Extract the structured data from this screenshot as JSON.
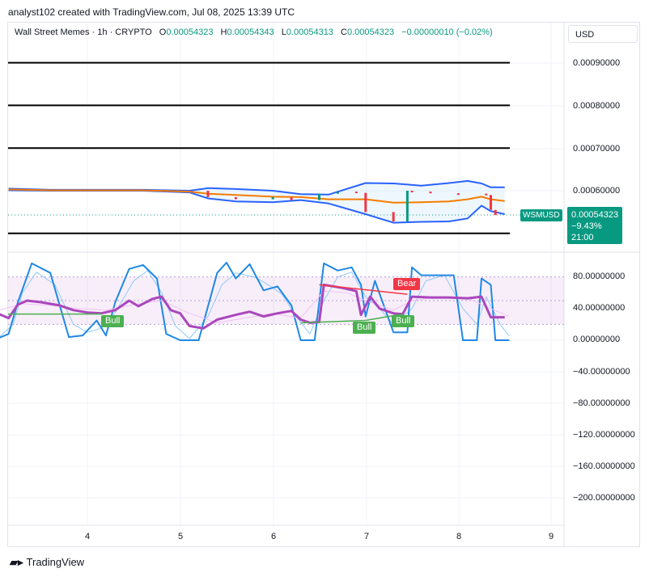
{
  "header": {
    "text": "analyst102 created with TradingView.com, Jul 08, 2025 13:39 UTC"
  },
  "legend": {
    "symbol": "Wall Street Memes · 1h · CRYPTO",
    "o_label": "O",
    "o": "0.00054323",
    "h_label": "H",
    "h": "0.00054343",
    "l_label": "L",
    "l": "0.00054313",
    "c_label": "C",
    "c": "0.00054323",
    "change": "−0.00000010 (−0.02%)"
  },
  "currency_button": "USD",
  "price_axis": [
    "0.00090000",
    "0.00080000",
    "0.00070000",
    "0.00060000"
  ],
  "osc_axis": [
    "80.00000000",
    "40.00000000",
    "0.00000000",
    "−40.00000000",
    "−80.00000000",
    "−120.00000000",
    "−160.00000000",
    "−200.00000000"
  ],
  "time_axis": [
    "4",
    "5",
    "6",
    "7",
    "8",
    "9"
  ],
  "symbol_tag": "WSMUSD",
  "price_tag": {
    "price": "0.00054323",
    "change": "−9.43%",
    "time": "21:00"
  },
  "signals": {
    "bull_1": "Bull",
    "bull_2": "Bull",
    "bull_3": "Bull",
    "bear_1": "Bear"
  },
  "footer": {
    "brand": "TradingView"
  },
  "colors": {
    "up": "#089981",
    "down": "#f23645",
    "bb": "#2962ff",
    "basis": "#f57c00",
    "rsi": "#ab47bc",
    "stoch": "#1e88e5",
    "bull": "#4caf50",
    "bear": "#f23645"
  },
  "chart_data": [
    {
      "type": "line",
      "title": "Wall Street Memes · 1h · CRYPTO",
      "x_labels": [
        "4",
        "5",
        "6",
        "7",
        "8",
        "9"
      ],
      "ylim": [
        0.0005,
        0.00094
      ],
      "horizontal_levels": [
        0.0009,
        0.0008,
        0.0007,
        0.0005
      ],
      "series": [
        {
          "role": "bollinger_upper",
          "x": [
            3.15,
            3.6,
            4.0,
            4.6,
            5.1,
            5.3,
            5.6,
            6.0,
            6.3,
            6.6,
            7.0,
            7.3,
            7.6,
            7.9,
            8.1,
            8.25,
            8.35,
            8.5
          ],
          "y": [
            0.000605,
            0.000602,
            0.000602,
            0.000602,
            0.0006,
            0.000606,
            0.000604,
            0.0006,
            0.000592,
            0.000591,
            0.000618,
            0.000617,
            0.000612,
            0.000618,
            0.000623,
            0.000617,
            0.000608,
            0.000608
          ]
        },
        {
          "role": "bollinger_basis",
          "x": [
            3.15,
            3.6,
            4.0,
            4.6,
            5.1,
            5.3,
            5.6,
            6.0,
            6.3,
            6.6,
            7.0,
            7.3,
            7.6,
            7.9,
            8.1,
            8.25,
            8.35,
            8.5
          ],
          "y": [
            0.000603,
            0.000601,
            0.000601,
            0.000601,
            0.000598,
            0.000593,
            0.00059,
            0.000586,
            0.000585,
            0.00058,
            0.00058,
            0.000572,
            0.000573,
            0.000575,
            0.00058,
            0.000586,
            0.00058,
            0.000576
          ]
        },
        {
          "role": "bollinger_lower",
          "x": [
            3.15,
            3.6,
            4.0,
            4.6,
            5.1,
            5.3,
            5.6,
            6.0,
            6.3,
            6.6,
            7.0,
            7.3,
            7.6,
            7.9,
            8.1,
            8.25,
            8.35,
            8.5
          ],
          "y": [
            0.000601,
            0.0006,
            0.0006,
            0.0006,
            0.000596,
            0.000582,
            0.000575,
            0.000573,
            0.000578,
            0.00057,
            0.000545,
            0.000525,
            0.000527,
            0.000528,
            0.000535,
            0.000565,
            0.000552,
            0.000545
          ]
        },
        {
          "role": "price_candles_close",
          "x": [
            5.1,
            5.3,
            5.6,
            6.0,
            6.2,
            6.5,
            6.7,
            6.9,
            7.0,
            7.3,
            7.45,
            7.5,
            7.7,
            8.0,
            8.3,
            8.35,
            8.4
          ],
          "y": [
            0.0006,
            0.000585,
            0.00058,
            0.000585,
            0.000578,
            0.000593,
            0.000598,
            0.000595,
            0.00055,
            0.000528,
            0.0006,
            0.000598,
            0.000594,
            0.000593,
            0.00059,
            0.000555,
            0.000543
          ]
        }
      ]
    },
    {
      "type": "line",
      "title": "",
      "x_labels": [
        "4",
        "5",
        "6",
        "7",
        "8",
        "9"
      ],
      "ylim": [
        -230,
        100
      ],
      "band": [
        20,
        80
      ],
      "series": [
        {
          "role": "stoch_k",
          "x": [
            3.05,
            3.15,
            3.25,
            3.4,
            3.6,
            3.8,
            3.95,
            4.1,
            4.2,
            4.3,
            4.45,
            4.6,
            4.75,
            4.85,
            5.0,
            5.2,
            5.4,
            5.5,
            5.6,
            5.75,
            5.9,
            6.05,
            6.2,
            6.3,
            6.45,
            6.55,
            6.7,
            6.85,
            6.95,
            7.0,
            7.1,
            7.3,
            7.45,
            7.5,
            7.6,
            7.8,
            7.95,
            8.05,
            8.2,
            8.25,
            8.35,
            8.4,
            8.55
          ],
          "y": [
            3,
            8,
            48,
            97,
            85,
            4,
            6,
            25,
            6,
            48,
            90,
            95,
            78,
            8,
            0,
            0,
            85,
            98,
            78,
            96,
            63,
            68,
            44,
            0,
            0,
            97,
            88,
            92,
            70,
            30,
            75,
            10,
            10,
            92,
            82,
            82,
            82,
            0,
            0,
            78,
            70,
            0,
            0
          ]
        },
        {
          "role": "stoch_d",
          "x": [
            3.05,
            3.2,
            3.3,
            3.45,
            3.65,
            3.85,
            4.0,
            4.15,
            4.3,
            4.5,
            4.65,
            4.8,
            4.95,
            5.1,
            5.3,
            5.45,
            5.6,
            5.8,
            5.95,
            6.1,
            6.25,
            6.4,
            6.55,
            6.7,
            6.85,
            7.0,
            7.15,
            7.3,
            7.5,
            7.65,
            7.85,
            8.05,
            8.2,
            8.3,
            8.45,
            8.55
          ],
          "y": [
            4,
            20,
            60,
            86,
            70,
            20,
            10,
            15,
            35,
            75,
            88,
            60,
            18,
            2,
            30,
            70,
            85,
            80,
            70,
            58,
            30,
            8,
            50,
            80,
            86,
            55,
            40,
            20,
            40,
            75,
            82,
            40,
            20,
            55,
            20,
            5
          ]
        },
        {
          "role": "rsi",
          "x": [
            3.05,
            3.15,
            3.25,
            3.35,
            3.5,
            3.7,
            3.85,
            4.0,
            4.15,
            4.3,
            4.45,
            4.55,
            4.7,
            4.8,
            4.9,
            5.0,
            5.1,
            5.25,
            5.4,
            5.6,
            5.75,
            5.9,
            6.05,
            6.2,
            6.3,
            6.4,
            6.5,
            6.55,
            6.75,
            6.9,
            6.95,
            7.05,
            7.15,
            7.3,
            7.4,
            7.5,
            7.7,
            7.9,
            8.1,
            8.25,
            8.35,
            8.5
          ],
          "y": [
            33,
            28,
            45,
            50,
            48,
            44,
            38,
            35,
            34,
            38,
            50,
            43,
            52,
            55,
            38,
            34,
            18,
            15,
            26,
            32,
            36,
            30,
            34,
            37,
            26,
            22,
            23,
            70,
            66,
            62,
            32,
            55,
            40,
            34,
            33,
            55,
            54,
            54,
            53,
            55,
            29,
            29
          ]
        },
        {
          "role": "rsi_ma",
          "x": [
            3.05,
            3.3,
            3.6,
            3.9,
            4.2,
            4.5,
            4.8,
            5.1,
            5.4,
            5.7,
            6.0,
            6.3,
            6.55,
            6.8,
            7.0,
            7.3,
            7.5,
            7.8,
            8.1,
            8.35,
            8.55
          ],
          "y": [
            38,
            46,
            44,
            40,
            38,
            45,
            50,
            34,
            22,
            28,
            34,
            28,
            62,
            60,
            50,
            38,
            50,
            55,
            53,
            40,
            30
          ]
        }
      ]
    }
  ]
}
